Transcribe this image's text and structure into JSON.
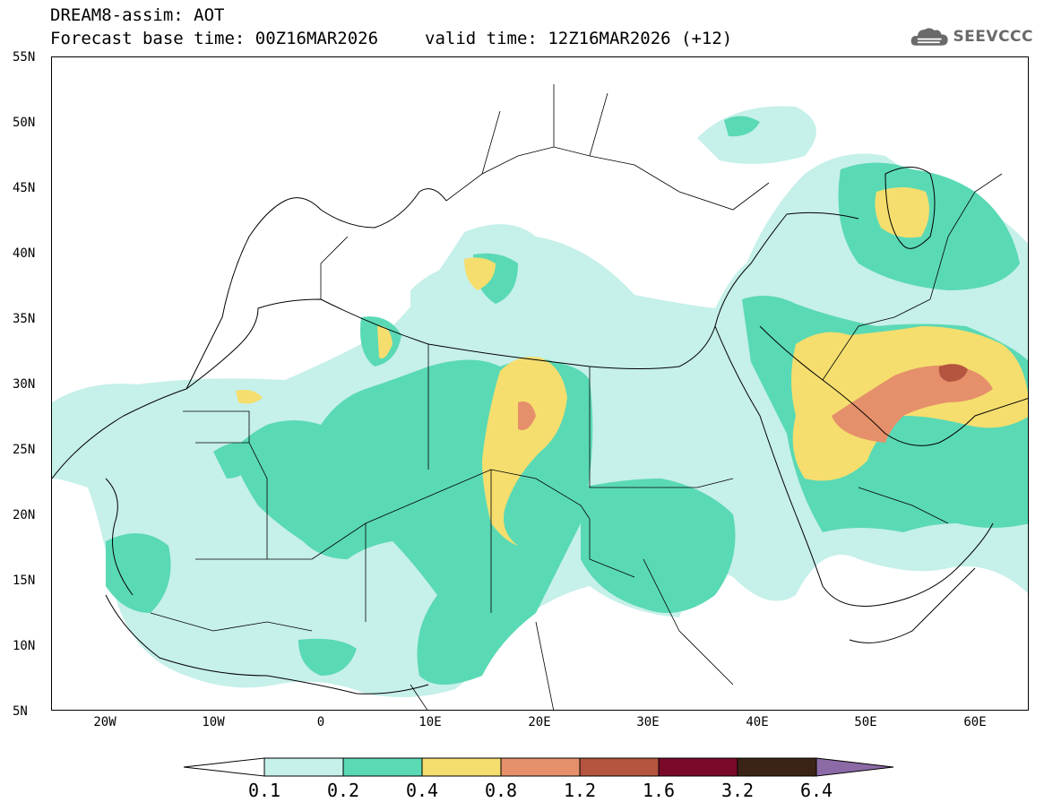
{
  "header": {
    "line1": "DREAM8-assim: AOT",
    "line2_base": "Forecast base time: 00Z16MAR2026",
    "line2_valid": "valid time: 12Z16MAR2026 (+12)"
  },
  "logo": {
    "text": "SEEVCCC",
    "icon": "cloud-logo-icon"
  },
  "map": {
    "lat_labels": [
      "55N",
      "50N",
      "45N",
      "40N",
      "35N",
      "30N",
      "25N",
      "20N",
      "15N",
      "10N",
      "5N"
    ],
    "lon_labels": [
      "20W",
      "10W",
      "0",
      "10E",
      "20E",
      "30E",
      "40E",
      "50E",
      "60E"
    ],
    "field": "Aerosol Optical Thickness",
    "colors": {
      "c1": "#c6f0ea",
      "c2": "#5ad9b5",
      "c3": "#f5de6e",
      "c4": "#e5906a",
      "c5": "#b5543f",
      "c6": "#7a0a2a",
      "c7": "#3b2415",
      "c8": "#8c6aa5"
    }
  },
  "colorbar": {
    "labels": [
      "0.1",
      "0.2",
      "0.4",
      "0.8",
      "1.2",
      "1.6",
      "3.2",
      "6.4"
    ]
  }
}
